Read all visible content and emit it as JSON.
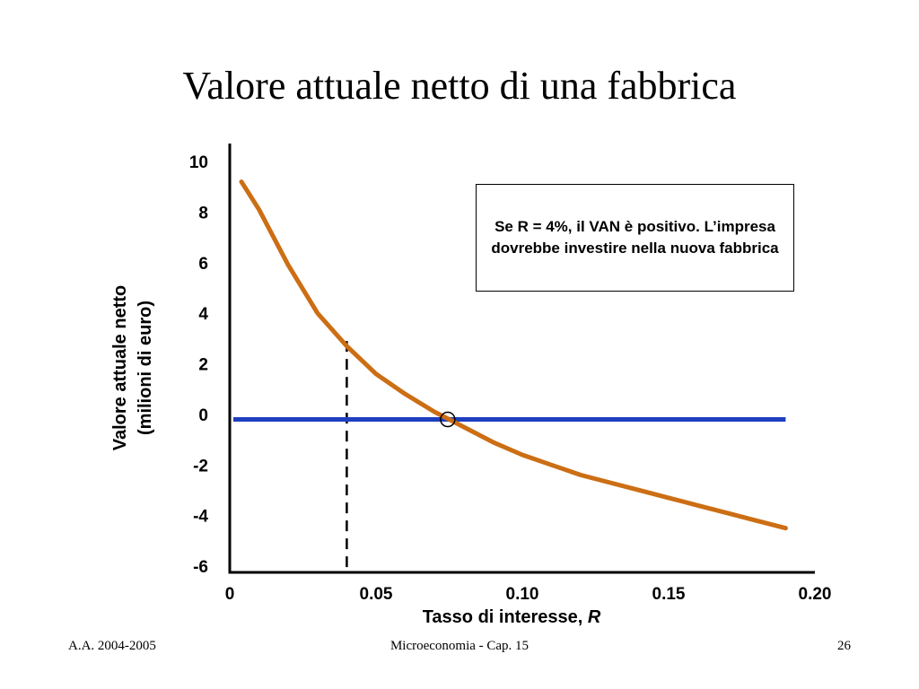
{
  "slide": {
    "title": "Valore attuale netto di una fabbrica"
  },
  "callout": {
    "text": "Se R = 4%, il VAN è positivo.  L’impresa dovrebbe investire nella nuova fabbrica"
  },
  "footer": {
    "left": "A.A. 2004-2005",
    "center": "Microeconomia - Cap. 15",
    "right": "26"
  },
  "chart_data": {
    "type": "line",
    "xlabel": "Tasso di interesse, ",
    "xlabel_var": "R",
    "ylabel_line1": "Valore attuale netto",
    "ylabel_line2": "(milioni di euro)",
    "xlim": [
      0,
      0.2
    ],
    "ylim": [
      -6,
      10
    ],
    "x_ticks": [
      "0",
      "0.05",
      "0.10",
      "0.15",
      "0.20"
    ],
    "y_ticks": [
      "10",
      "8",
      "6",
      "4",
      "2",
      "0",
      "-2",
      "-4",
      "-6"
    ],
    "series": [
      {
        "color": "#CC6E14",
        "x": [
          0.004,
          0.01,
          0.02,
          0.03,
          0.04,
          0.05,
          0.06,
          0.07,
          0.075,
          0.08,
          0.09,
          0.1,
          0.11,
          0.12,
          0.13,
          0.14,
          0.15,
          0.16,
          0.17,
          0.18,
          0.19
        ],
        "y": [
          9.2,
          8.1,
          5.9,
          4.0,
          2.7,
          1.6,
          0.8,
          0.1,
          -0.2,
          -0.5,
          -1.1,
          -1.6,
          -2.0,
          -2.4,
          -2.7,
          -3.0,
          -3.3,
          -3.6,
          -3.9,
          -4.2,
          -4.5
        ]
      }
    ],
    "zero_line": {
      "y": -0.2,
      "x_start": 0.0,
      "x_end": 0.19,
      "color": "#1F3FBF"
    },
    "marker": {
      "x": 0.0745,
      "y": -0.2
    },
    "dashed_line": {
      "x": 0.04,
      "y_top": 2.9
    }
  }
}
